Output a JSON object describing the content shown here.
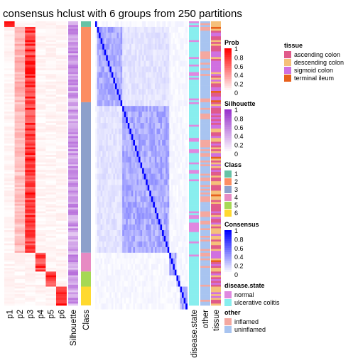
{
  "chart_data": {
    "type": "heatmap",
    "title": "consensus hclust with 6 groups from 250 partitions",
    "columns": {
      "prob": [
        "p1",
        "p2",
        "p3",
        "p4",
        "p5",
        "p6"
      ],
      "silhouette": "Silhouette",
      "class": "Class",
      "disease_state": "disease.state",
      "other": "other",
      "tissue": "tissue"
    },
    "class_sizes": [
      3,
      40,
      80,
      10,
      8,
      10
    ],
    "legends": [
      {
        "title": "Prob",
        "type": "continuous",
        "ticks": [
          "1",
          "0.8",
          "0.6",
          "0.4",
          "0.2",
          "0"
        ],
        "colors": [
          "#ffffff",
          "#ff0000"
        ]
      },
      {
        "title": "Silhouette",
        "type": "continuous",
        "ticks": [
          "1",
          "0.8",
          "0.6",
          "0.4",
          "0.2",
          "0"
        ],
        "colors": [
          "#ffffff",
          "#9932cc"
        ]
      },
      {
        "title": "Class",
        "type": "discrete",
        "items": [
          {
            "label": "1",
            "color": "#66c2a5"
          },
          {
            "label": "2",
            "color": "#fc8d62"
          },
          {
            "label": "3",
            "color": "#8da0cb"
          },
          {
            "label": "4",
            "color": "#e78ac3"
          },
          {
            "label": "5",
            "color": "#a6d854"
          },
          {
            "label": "6",
            "color": "#ffd92f"
          }
        ]
      },
      {
        "title": "Consensus",
        "type": "continuous",
        "ticks": [
          "1",
          "0.8",
          "0.6",
          "0.4",
          "0.2",
          "0"
        ],
        "colors": [
          "#ffffff",
          "#0000ff"
        ]
      },
      {
        "title": "disease.state",
        "type": "discrete",
        "items": [
          {
            "label": "normal",
            "color": "#e088e0"
          },
          {
            "label": "ulcerative colitis",
            "color": "#88eeee"
          }
        ]
      },
      {
        "title": "other",
        "type": "discrete",
        "items": [
          {
            "label": "inflamed",
            "color": "#f4a8a0"
          },
          {
            "label": "uninflamed",
            "color": "#a8c4f0"
          }
        ]
      },
      {
        "title": "tissue",
        "type": "discrete",
        "items": [
          {
            "label": "ascending colon",
            "color": "#e05a8a"
          },
          {
            "label": "descending colon",
            "color": "#f5c07a"
          },
          {
            "label": "sigmoid colon",
            "color": "#d070e0"
          },
          {
            "label": "terminal ileum",
            "color": "#e8601c"
          }
        ]
      }
    ]
  }
}
